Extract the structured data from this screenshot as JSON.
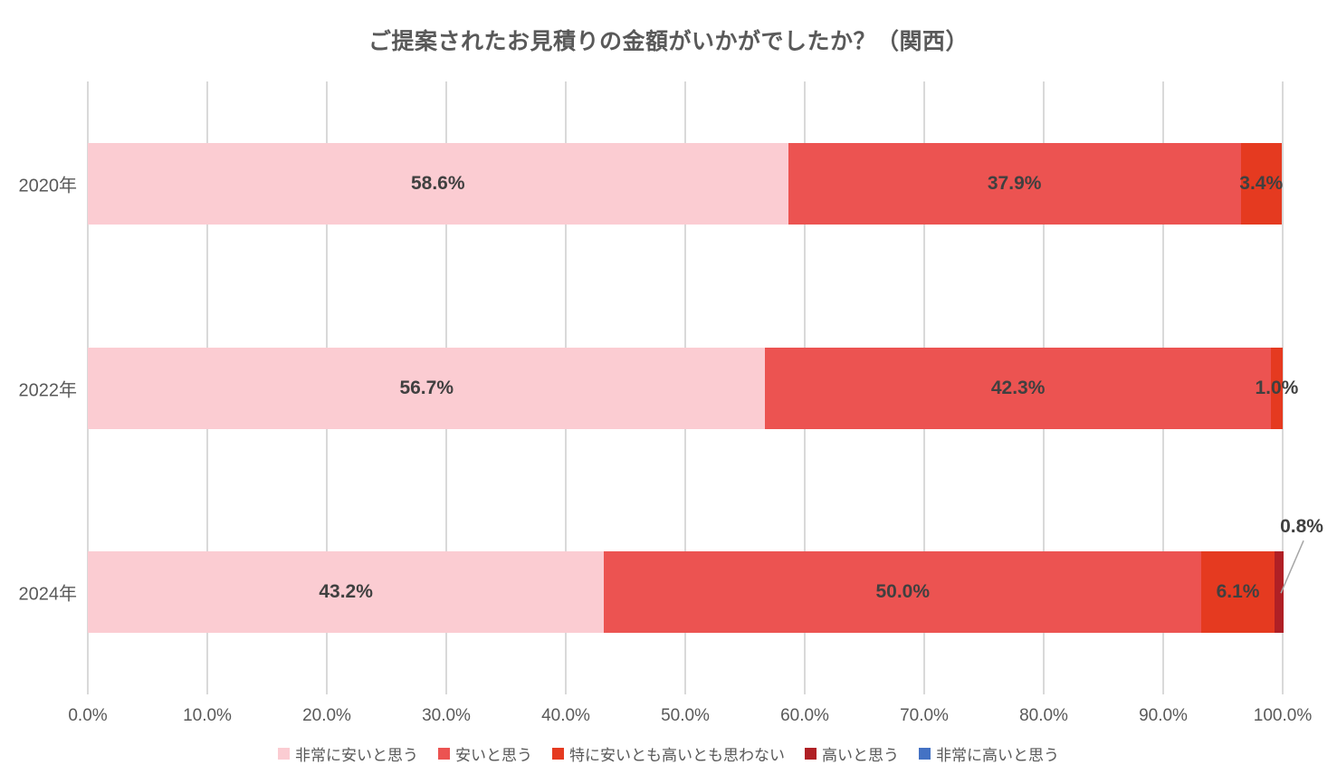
{
  "title": "ご提案されたお見積りの金額がいかがでしたか？（関西）",
  "chart_data": {
    "type": "bar",
    "stacked": true,
    "orientation": "horizontal",
    "title": "ご提案されたお見積りの金額がいかがでしたか？（関西）",
    "categories": [
      "2020年",
      "2022年",
      "2024年"
    ],
    "series": [
      {
        "name": "非常に安いと思う",
        "color": "#FBCCD2",
        "values": [
          58.6,
          56.7,
          43.2
        ]
      },
      {
        "name": "安いと思う",
        "color": "#EC5351",
        "values": [
          37.9,
          42.3,
          50.0
        ]
      },
      {
        "name": "特に安いとも高いとも思わない",
        "color": "#E53A20",
        "values": [
          3.4,
          1.0,
          6.1
        ]
      },
      {
        "name": "高いと思う",
        "color": "#B02025",
        "values": [
          0,
          0,
          0.8
        ]
      },
      {
        "name": "非常に高いと思う",
        "color": "#4472C4",
        "values": [
          0,
          0,
          0
        ]
      }
    ],
    "data_labels": [
      [
        "58.6%",
        "37.9%",
        "3.4%",
        "",
        ""
      ],
      [
        "56.7%",
        "42.3%",
        "1.0%",
        "",
        ""
      ],
      [
        "43.2%",
        "50.0%",
        "6.1%",
        "0.8%",
        ""
      ]
    ],
    "callouts": [
      {
        "category_index": 2,
        "series_index": 3,
        "label": "0.8%"
      }
    ],
    "x_ticks": [
      "0.0%",
      "10.0%",
      "20.0%",
      "30.0%",
      "40.0%",
      "50.0%",
      "60.0%",
      "70.0%",
      "80.0%",
      "90.0%",
      "100.0%"
    ],
    "xlim": [
      0,
      100
    ],
    "grid": true,
    "legend_position": "bottom"
  },
  "colors": {
    "title_text": "#595959",
    "axis_text": "#595959",
    "data_label_text": "#404040",
    "gridline": "#D9D9D9",
    "callout_line": "#A6A6A6",
    "background": "#FFFFFF"
  }
}
